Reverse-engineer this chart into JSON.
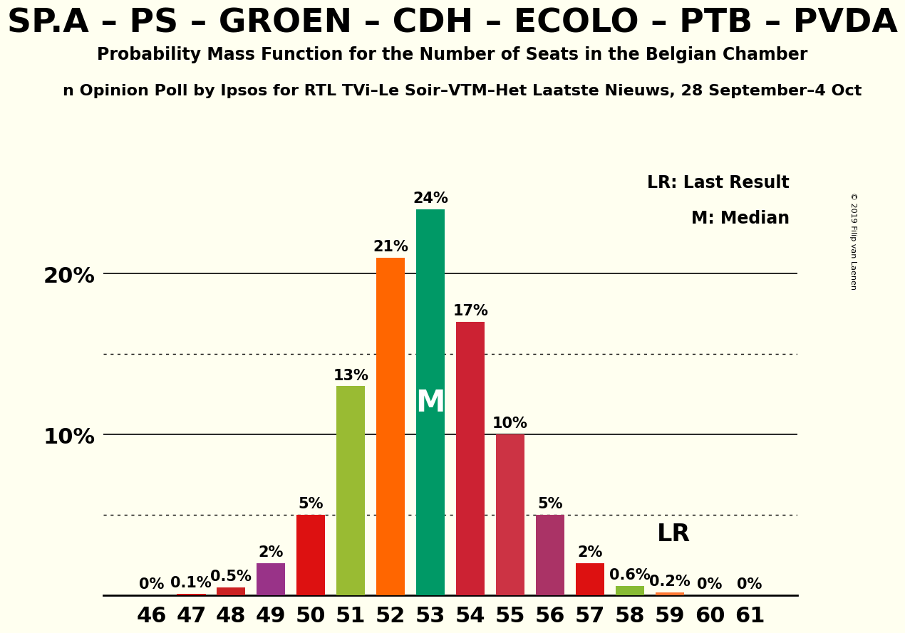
{
  "title": "SP.A – PS – GROEN – CDH – ECOLO – PTB – PVDA",
  "subtitle": "Probability Mass Function for the Number of Seats in the Belgian Chamber",
  "poll_label": "n Opinion Poll by Ipsos for RTL TVi–Le Soir–VTM–Het Laatste Nieuws, 28 September–4 Oct",
  "copyright": "© 2019 Filip van Laenen",
  "seats": [
    46,
    47,
    48,
    49,
    50,
    51,
    52,
    53,
    54,
    55,
    56,
    57,
    58,
    59,
    60,
    61
  ],
  "probabilities": [
    0.0,
    0.1,
    0.5,
    2.0,
    5.0,
    13.0,
    21.0,
    24.0,
    17.0,
    10.0,
    5.0,
    2.0,
    0.6,
    0.2,
    0.0,
    0.0
  ],
  "bar_colors": [
    "#ee1111",
    "#cc1111",
    "#cc2222",
    "#993388",
    "#dd1111",
    "#99bb33",
    "#ff6600",
    "#009966",
    "#cc2233",
    "#cc3344",
    "#aa3366",
    "#dd1111",
    "#88bb33",
    "#ff7733",
    "#ffaa55",
    "#ffcc77"
  ],
  "median_seat": 53,
  "lr_seat": 58,
  "legend_lr": "LR: Last Result",
  "legend_m": "M: Median",
  "background_color": "#fffff0",
  "ylim": [
    0,
    27
  ],
  "solid_lines": [
    10,
    20
  ],
  "dotted_lines": [
    5,
    15
  ],
  "title_fontsize": 34,
  "subtitle_fontsize": 17,
  "poll_fontsize": 16,
  "bar_label_fontsize": 15,
  "axis_label_fontsize": 22,
  "median_label": "M",
  "lr_label": "LR"
}
